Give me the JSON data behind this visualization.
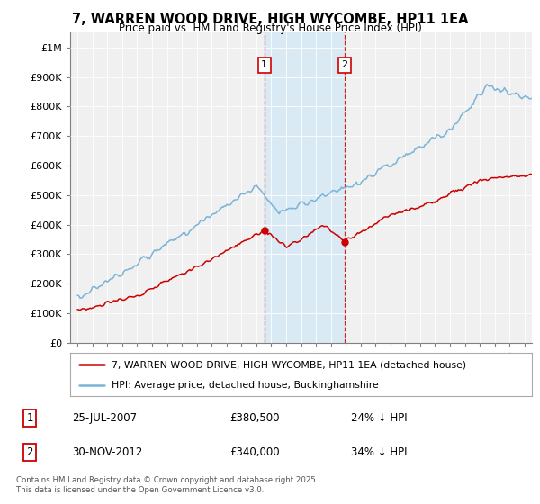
{
  "title": "7, WARREN WOOD DRIVE, HIGH WYCOMBE, HP11 1EA",
  "subtitle": "Price paid vs. HM Land Registry's House Price Index (HPI)",
  "legend_line1": "7, WARREN WOOD DRIVE, HIGH WYCOMBE, HP11 1EA (detached house)",
  "legend_line2": "HPI: Average price, detached house, Buckinghamshire",
  "transaction1_date": "25-JUL-2007",
  "transaction1_price": "£380,500",
  "transaction1_hpi": "24% ↓ HPI",
  "transaction1_year": 2007.54,
  "transaction1_value": 380500,
  "transaction2_date": "30-NOV-2012",
  "transaction2_price": "£340,000",
  "transaction2_hpi": "34% ↓ HPI",
  "transaction2_year": 2012.92,
  "transaction2_value": 340000,
  "footer": "Contains HM Land Registry data © Crown copyright and database right 2025.\nThis data is licensed under the Open Government Licence v3.0.",
  "hpi_color": "#7ab4d8",
  "price_color": "#cc0000",
  "highlight_color": "#daeaf5",
  "bg_color": "#f0f0f0",
  "yticks": [
    0,
    100000,
    200000,
    300000,
    400000,
    500000,
    600000,
    700000,
    800000,
    900000,
    1000000
  ],
  "ylim_max": 1050000,
  "start_year": 1995,
  "end_year": 2025
}
